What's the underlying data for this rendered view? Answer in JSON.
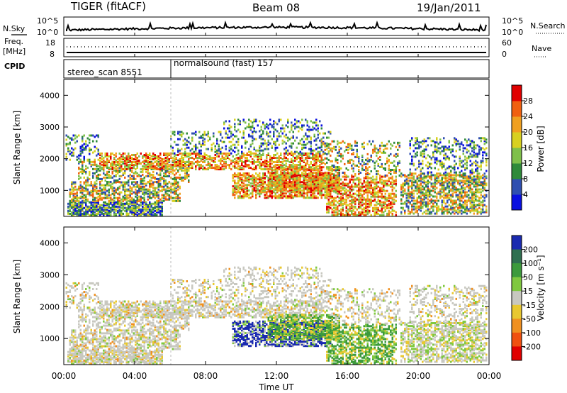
{
  "header": {
    "radar": "TIGER (fitACF)",
    "beam": "Beam 08",
    "date": "19/Jan/2011"
  },
  "strips": {
    "nsky_label": "N.Sky",
    "nsky_ticks": [
      "10^5",
      "10^0"
    ],
    "nsearch_label": "N.Search",
    "nsearch_ticks": [
      "10^5",
      "10^0"
    ],
    "freq_label_1": "Freq.",
    "freq_label_2": "[MHz]",
    "freq_ticks": [
      "18",
      "8"
    ],
    "nave_label": "Nave",
    "nave_ticks": [
      "60",
      "0"
    ],
    "cpid_label": "CPID",
    "cpid_segments": [
      {
        "label": "stereo_scan 8551",
        "start_h": 0,
        "end_h": 6
      },
      {
        "label": "normalsound (fast) 157",
        "start_h": 6,
        "end_h": 24
      }
    ]
  },
  "chart_data": [
    {
      "type": "heatmap",
      "name": "power-panel",
      "ylabel": "Slant Range [km]",
      "xlabel": "Time UT",
      "x_ticks": [
        "00:00",
        "04:00",
        "08:00",
        "12:00",
        "16:00",
        "20:00",
        "00:00"
      ],
      "y_ticks": [
        "1000",
        "2000",
        "3000",
        "4000"
      ],
      "xlim_h": [
        0,
        24
      ],
      "ylim_km": [
        180,
        4500
      ],
      "colorbar_label": "Power [dB]",
      "colorbar_ticks": [
        "4",
        "8",
        "12",
        "16",
        "20",
        "24",
        "28"
      ],
      "colorbar_colors": [
        "#0a10e0",
        "#2f4fb0",
        "#2f8a3a",
        "#7fc04a",
        "#d8d020",
        "#f0a020",
        "#f06010",
        "#e00000"
      ]
    },
    {
      "type": "heatmap",
      "name": "velocity-panel",
      "ylabel": "Slant Range [km]",
      "xlabel": "Time UT",
      "x_ticks": [
        "00:00",
        "04:00",
        "08:00",
        "12:00",
        "16:00",
        "20:00",
        "00:00"
      ],
      "y_ticks": [
        "1000",
        "2000",
        "3000",
        "4000"
      ],
      "xlim_h": [
        0,
        24
      ],
      "ylim_km": [
        180,
        4500
      ],
      "colorbar_label": "Velocity [m s⁻¹]",
      "colorbar_ticks": [
        "200",
        "100",
        "50",
        "15",
        "-15",
        "-50",
        "-100",
        "-200"
      ],
      "colorbar_colors": [
        "#1a2ab0",
        "#2f6f50",
        "#3c9a3c",
        "#80c840",
        "#c8c8c0",
        "#e8c830",
        "#f09020",
        "#f05010",
        "#e00000"
      ]
    }
  ]
}
